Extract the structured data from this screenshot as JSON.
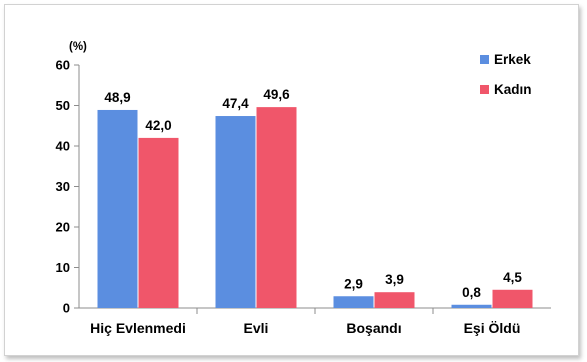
{
  "chart_data": {
    "type": "bar",
    "unit_label": "(%)",
    "categories": [
      "Hiç Evlenmedi",
      "Evli",
      "Boşandı",
      "Eşi Öldü"
    ],
    "series": [
      {
        "name": "Erkek",
        "values": [
          48.9,
          47.4,
          2.9,
          0.8
        ],
        "value_labels": [
          "48,9",
          "47,4",
          "2,9",
          "0,8"
        ],
        "color": "#5b8ee0"
      },
      {
        "name": "Kadın",
        "values": [
          42.0,
          49.6,
          3.9,
          4.5
        ],
        "value_labels": [
          "42,0",
          "49,6",
          "3,9",
          "4,5"
        ],
        "color": "#f0566a"
      }
    ],
    "ylim": [
      0,
      60
    ],
    "yticks": [
      0,
      10,
      20,
      30,
      40,
      50,
      60
    ],
    "grid": false,
    "legend_position": "top-right"
  }
}
